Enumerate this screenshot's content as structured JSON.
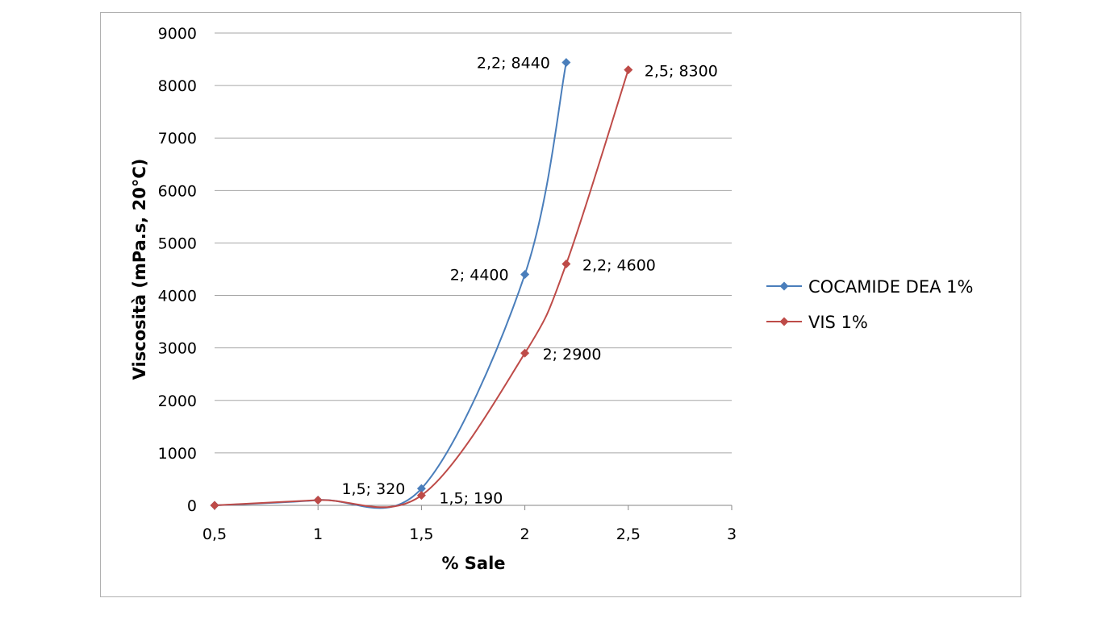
{
  "chart_data": {
    "type": "line",
    "title": "",
    "xlabel": "% Sale",
    "ylabel": "Viscosità (mPa.s, 20°C)",
    "xlim": [
      0.5,
      3
    ],
    "ylim": [
      0,
      9000
    ],
    "xticks": [
      0.5,
      1,
      1.5,
      2,
      2.5,
      3
    ],
    "xtick_labels": [
      "0,5",
      "1",
      "1,5",
      "2",
      "2,5",
      "3"
    ],
    "yticks": [
      0,
      1000,
      2000,
      3000,
      4000,
      5000,
      6000,
      7000,
      8000,
      9000
    ],
    "ytick_labels": [
      "0",
      "1000",
      "2000",
      "3000",
      "4000",
      "5000",
      "6000",
      "7000",
      "8000",
      "9000"
    ],
    "grid": "horizontal",
    "legend_position": "right",
    "series": [
      {
        "name": "COCAMIDE DEA 1%",
        "color": "#4a7ebb",
        "marker": "diamond",
        "points": [
          {
            "x": 0.5,
            "y": 0,
            "label": ""
          },
          {
            "x": 1,
            "y": 100,
            "label": ""
          },
          {
            "x": 1.5,
            "y": 320,
            "label": "1,5; 320"
          },
          {
            "x": 2,
            "y": 4400,
            "label": "2; 4400"
          },
          {
            "x": 2.2,
            "y": 8440,
            "label": "2,2; 8440"
          }
        ]
      },
      {
        "name": "VIS 1%",
        "color": "#be4b48",
        "marker": "diamond",
        "points": [
          {
            "x": 0.5,
            "y": 0,
            "label": ""
          },
          {
            "x": 1,
            "y": 100,
            "label": ""
          },
          {
            "x": 1.5,
            "y": 190,
            "label": "1,5; 190"
          },
          {
            "x": 2,
            "y": 2900,
            "label": "2; 2900"
          },
          {
            "x": 2.2,
            "y": 4600,
            "label": "2,2; 4600"
          },
          {
            "x": 2.5,
            "y": 8300,
            "label": "2,5; 8300"
          }
        ]
      }
    ]
  }
}
